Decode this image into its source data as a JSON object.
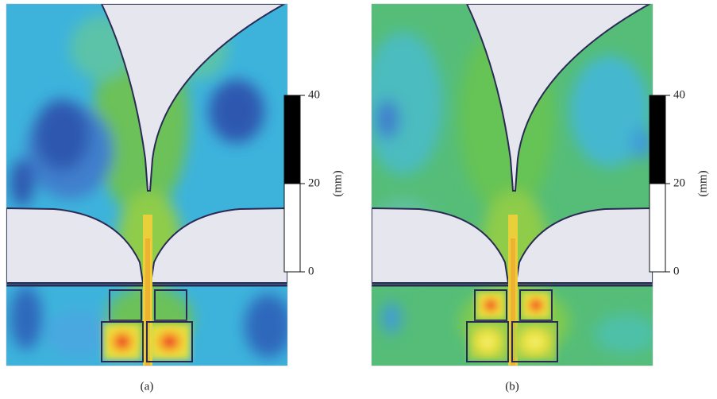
{
  "panels": [
    {
      "label": "(a)",
      "scale": {
        "ylim": [
          0,
          40
        ],
        "yticks": [
          0,
          20,
          40
        ],
        "label": "(mm)"
      }
    },
    {
      "label": "(b)",
      "scale": {
        "ylim": [
          0,
          40
        ],
        "yticks": [
          0,
          20,
          40
        ],
        "label": "(mm)"
      }
    }
  ]
}
